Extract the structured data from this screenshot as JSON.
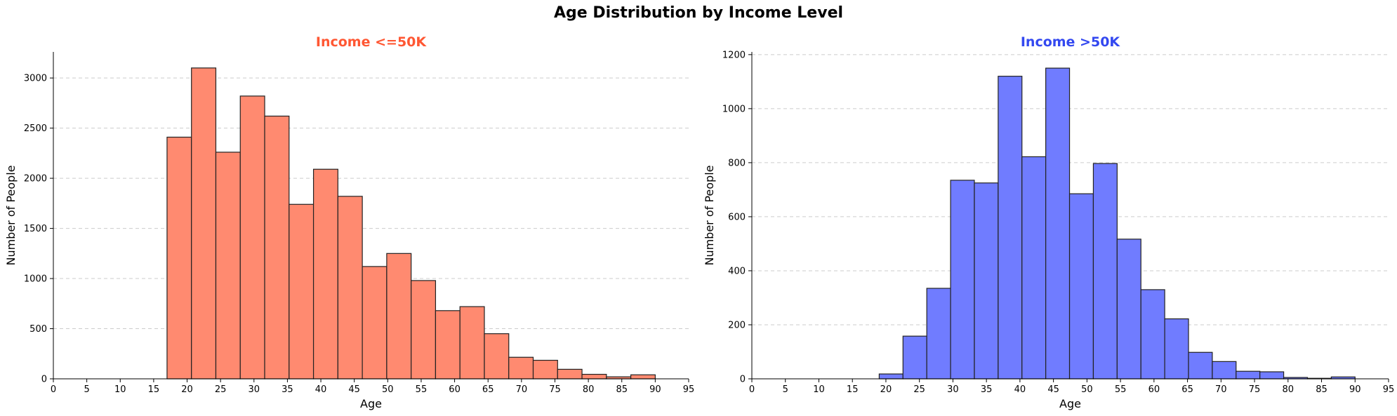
{
  "title": "Age Distribution by Income Level",
  "chart_data": [
    {
      "type": "bar",
      "title": "Income <=50K",
      "title_color": "#ff5733",
      "bar_color": "#ff8a70",
      "xlabel": "Age",
      "ylabel": "Number of People",
      "xlim": [
        0,
        95
      ],
      "ylim": [
        0,
        3260
      ],
      "xticks": [
        0,
        5,
        10,
        15,
        20,
        25,
        30,
        35,
        40,
        45,
        50,
        55,
        60,
        65,
        70,
        75,
        80,
        85,
        90,
        95
      ],
      "yticks": [
        0,
        500,
        1000,
        1500,
        2000,
        2500,
        3000
      ],
      "grid": "y",
      "bin_width": 3.65,
      "bin_starts": [
        17,
        20.65,
        24.3,
        27.95,
        31.6,
        35.25,
        38.9,
        42.55,
        46.2,
        49.85,
        53.5,
        57.15,
        60.8,
        64.45,
        68.1,
        71.75,
        75.4,
        79.05,
        82.7,
        86.35
      ],
      "values": [
        2410,
        3100,
        2260,
        2820,
        2620,
        1740,
        2090,
        1820,
        1120,
        1250,
        980,
        680,
        720,
        450,
        215,
        185,
        95,
        45,
        20,
        40
      ]
    },
    {
      "type": "bar",
      "title": "Income >50K",
      "title_color": "#3348f0",
      "bar_color": "#707cff",
      "xlabel": "Age",
      "ylabel": "Number of People",
      "xlim": [
        0,
        95
      ],
      "ylim": [
        0,
        1210
      ],
      "xticks": [
        0,
        5,
        10,
        15,
        20,
        25,
        30,
        35,
        40,
        45,
        50,
        55,
        60,
        65,
        70,
        75,
        80,
        85,
        90,
        95
      ],
      "yticks": [
        0,
        200,
        400,
        600,
        800,
        1000,
        1200
      ],
      "grid": "y",
      "bin_width": 3.55,
      "bin_starts": [
        19,
        22.55,
        26.1,
        29.65,
        33.2,
        36.75,
        40.3,
        43.85,
        47.4,
        50.95,
        54.5,
        58.05,
        61.6,
        65.15,
        68.7,
        72.25,
        75.8,
        79.35,
        82.9,
        86.45
      ],
      "values": [
        18,
        158,
        335,
        735,
        725,
        1120,
        822,
        1150,
        685,
        797,
        517,
        330,
        222,
        98,
        64,
        28,
        26,
        5,
        2,
        7
      ]
    }
  ]
}
